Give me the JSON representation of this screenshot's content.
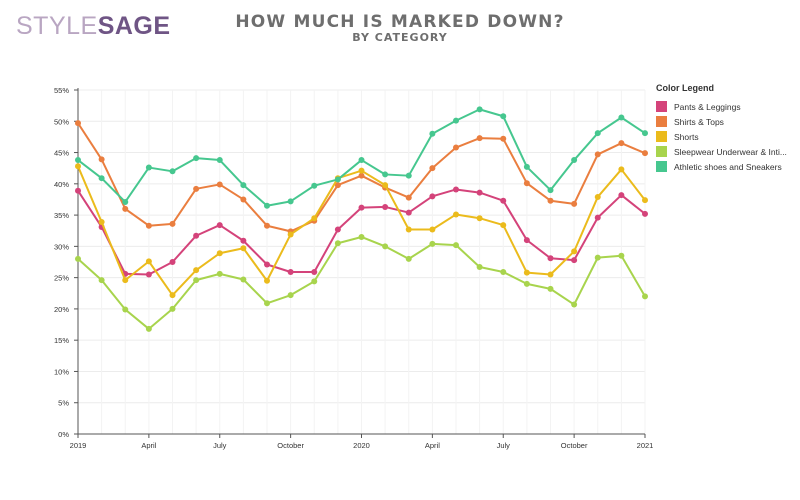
{
  "logo": {
    "style": "STYLE",
    "sage": "SAGE"
  },
  "header": {
    "title": "HOW MUCH IS MARKED DOWN?",
    "subtitle": "BY CATEGORY"
  },
  "legend": {
    "title": "Color Legend"
  },
  "chart_data": {
    "type": "line",
    "title": "HOW MUCH IS MARKED DOWN?",
    "subtitle": "BY CATEGORY",
    "x": [
      "2019-01",
      "2019-02",
      "2019-03",
      "2019-04",
      "2019-05",
      "2019-06",
      "2019-07",
      "2019-08",
      "2019-09",
      "2019-10",
      "2019-11",
      "2019-12",
      "2020-01",
      "2020-02",
      "2020-03",
      "2020-04",
      "2020-05",
      "2020-06",
      "2020-07",
      "2020-08",
      "2020-09",
      "2020-10",
      "2020-11",
      "2020-12",
      "2021-01"
    ],
    "x_tick_labels": [
      {
        "at": "2019-01",
        "label": "2019"
      },
      {
        "at": "2019-04",
        "label": "April"
      },
      {
        "at": "2019-07",
        "label": "July"
      },
      {
        "at": "2019-10",
        "label": "October"
      },
      {
        "at": "2020-01",
        "label": "2020"
      },
      {
        "at": "2020-04",
        "label": "April"
      },
      {
        "at": "2020-07",
        "label": "July"
      },
      {
        "at": "2020-10",
        "label": "October"
      },
      {
        "at": "2021-01",
        "label": "2021"
      }
    ],
    "ylim": [
      0,
      55
    ],
    "y_ticks": [
      "0%",
      "5%",
      "10%",
      "15%",
      "20%",
      "25%",
      "30%",
      "35%",
      "40%",
      "45%",
      "50%",
      "55%"
    ],
    "y_tick_values": [
      0,
      5,
      10,
      15,
      20,
      25,
      30,
      35,
      40,
      45,
      50,
      55
    ],
    "xlabel": "",
    "ylabel": "",
    "grid": true,
    "legend_position": "right",
    "series": [
      {
        "name": "Pants & Leggings",
        "color": "#d4437a",
        "values": [
          38.9,
          33.1,
          25.6,
          25.5,
          27.5,
          31.7,
          33.4,
          30.9,
          27.1,
          25.9,
          25.9,
          32.7,
          36.2,
          36.3,
          35.4,
          38.0,
          39.1,
          38.6,
          37.3,
          31.0,
          28.1,
          27.8,
          34.6,
          38.2,
          35.2
        ]
      },
      {
        "name": "Shirts & Tops",
        "color": "#ea7e3f",
        "values": [
          49.7,
          43.9,
          36.0,
          33.3,
          33.6,
          39.2,
          39.9,
          37.5,
          33.3,
          32.4,
          34.1,
          39.8,
          41.3,
          39.4,
          37.8,
          42.5,
          45.8,
          47.3,
          47.2,
          40.1,
          37.3,
          36.8,
          44.7,
          46.5,
          44.9
        ]
      },
      {
        "name": "Shorts",
        "color": "#ebbb1c",
        "values": [
          42.8,
          33.9,
          24.6,
          27.6,
          22.2,
          26.2,
          28.9,
          29.7,
          24.5,
          31.9,
          34.5,
          40.9,
          42.1,
          39.8,
          32.7,
          32.7,
          35.1,
          34.5,
          33.4,
          25.8,
          25.5,
          29.2,
          37.9,
          42.3,
          37.4
        ]
      },
      {
        "name": "Sleepwear Underwear & Inti...",
        "color": "#a8d44d",
        "values": [
          28.0,
          24.6,
          19.9,
          16.8,
          20.0,
          24.6,
          25.6,
          24.7,
          20.9,
          22.2,
          24.4,
          30.5,
          31.5,
          30.0,
          28.0,
          30.4,
          30.2,
          26.7,
          25.9,
          24.0,
          23.2,
          20.7,
          28.2,
          28.5,
          22.0
        ]
      },
      {
        "name": "Athletic shoes and Sneakers",
        "color": "#46c78f",
        "values": [
          43.8,
          40.9,
          37.1,
          42.6,
          42.0,
          44.1,
          43.8,
          39.8,
          36.5,
          37.2,
          39.7,
          40.7,
          43.8,
          41.5,
          41.3,
          48.0,
          50.1,
          51.9,
          50.8,
          42.7,
          39.0,
          43.8,
          48.1,
          50.6,
          48.1
        ]
      }
    ]
  }
}
